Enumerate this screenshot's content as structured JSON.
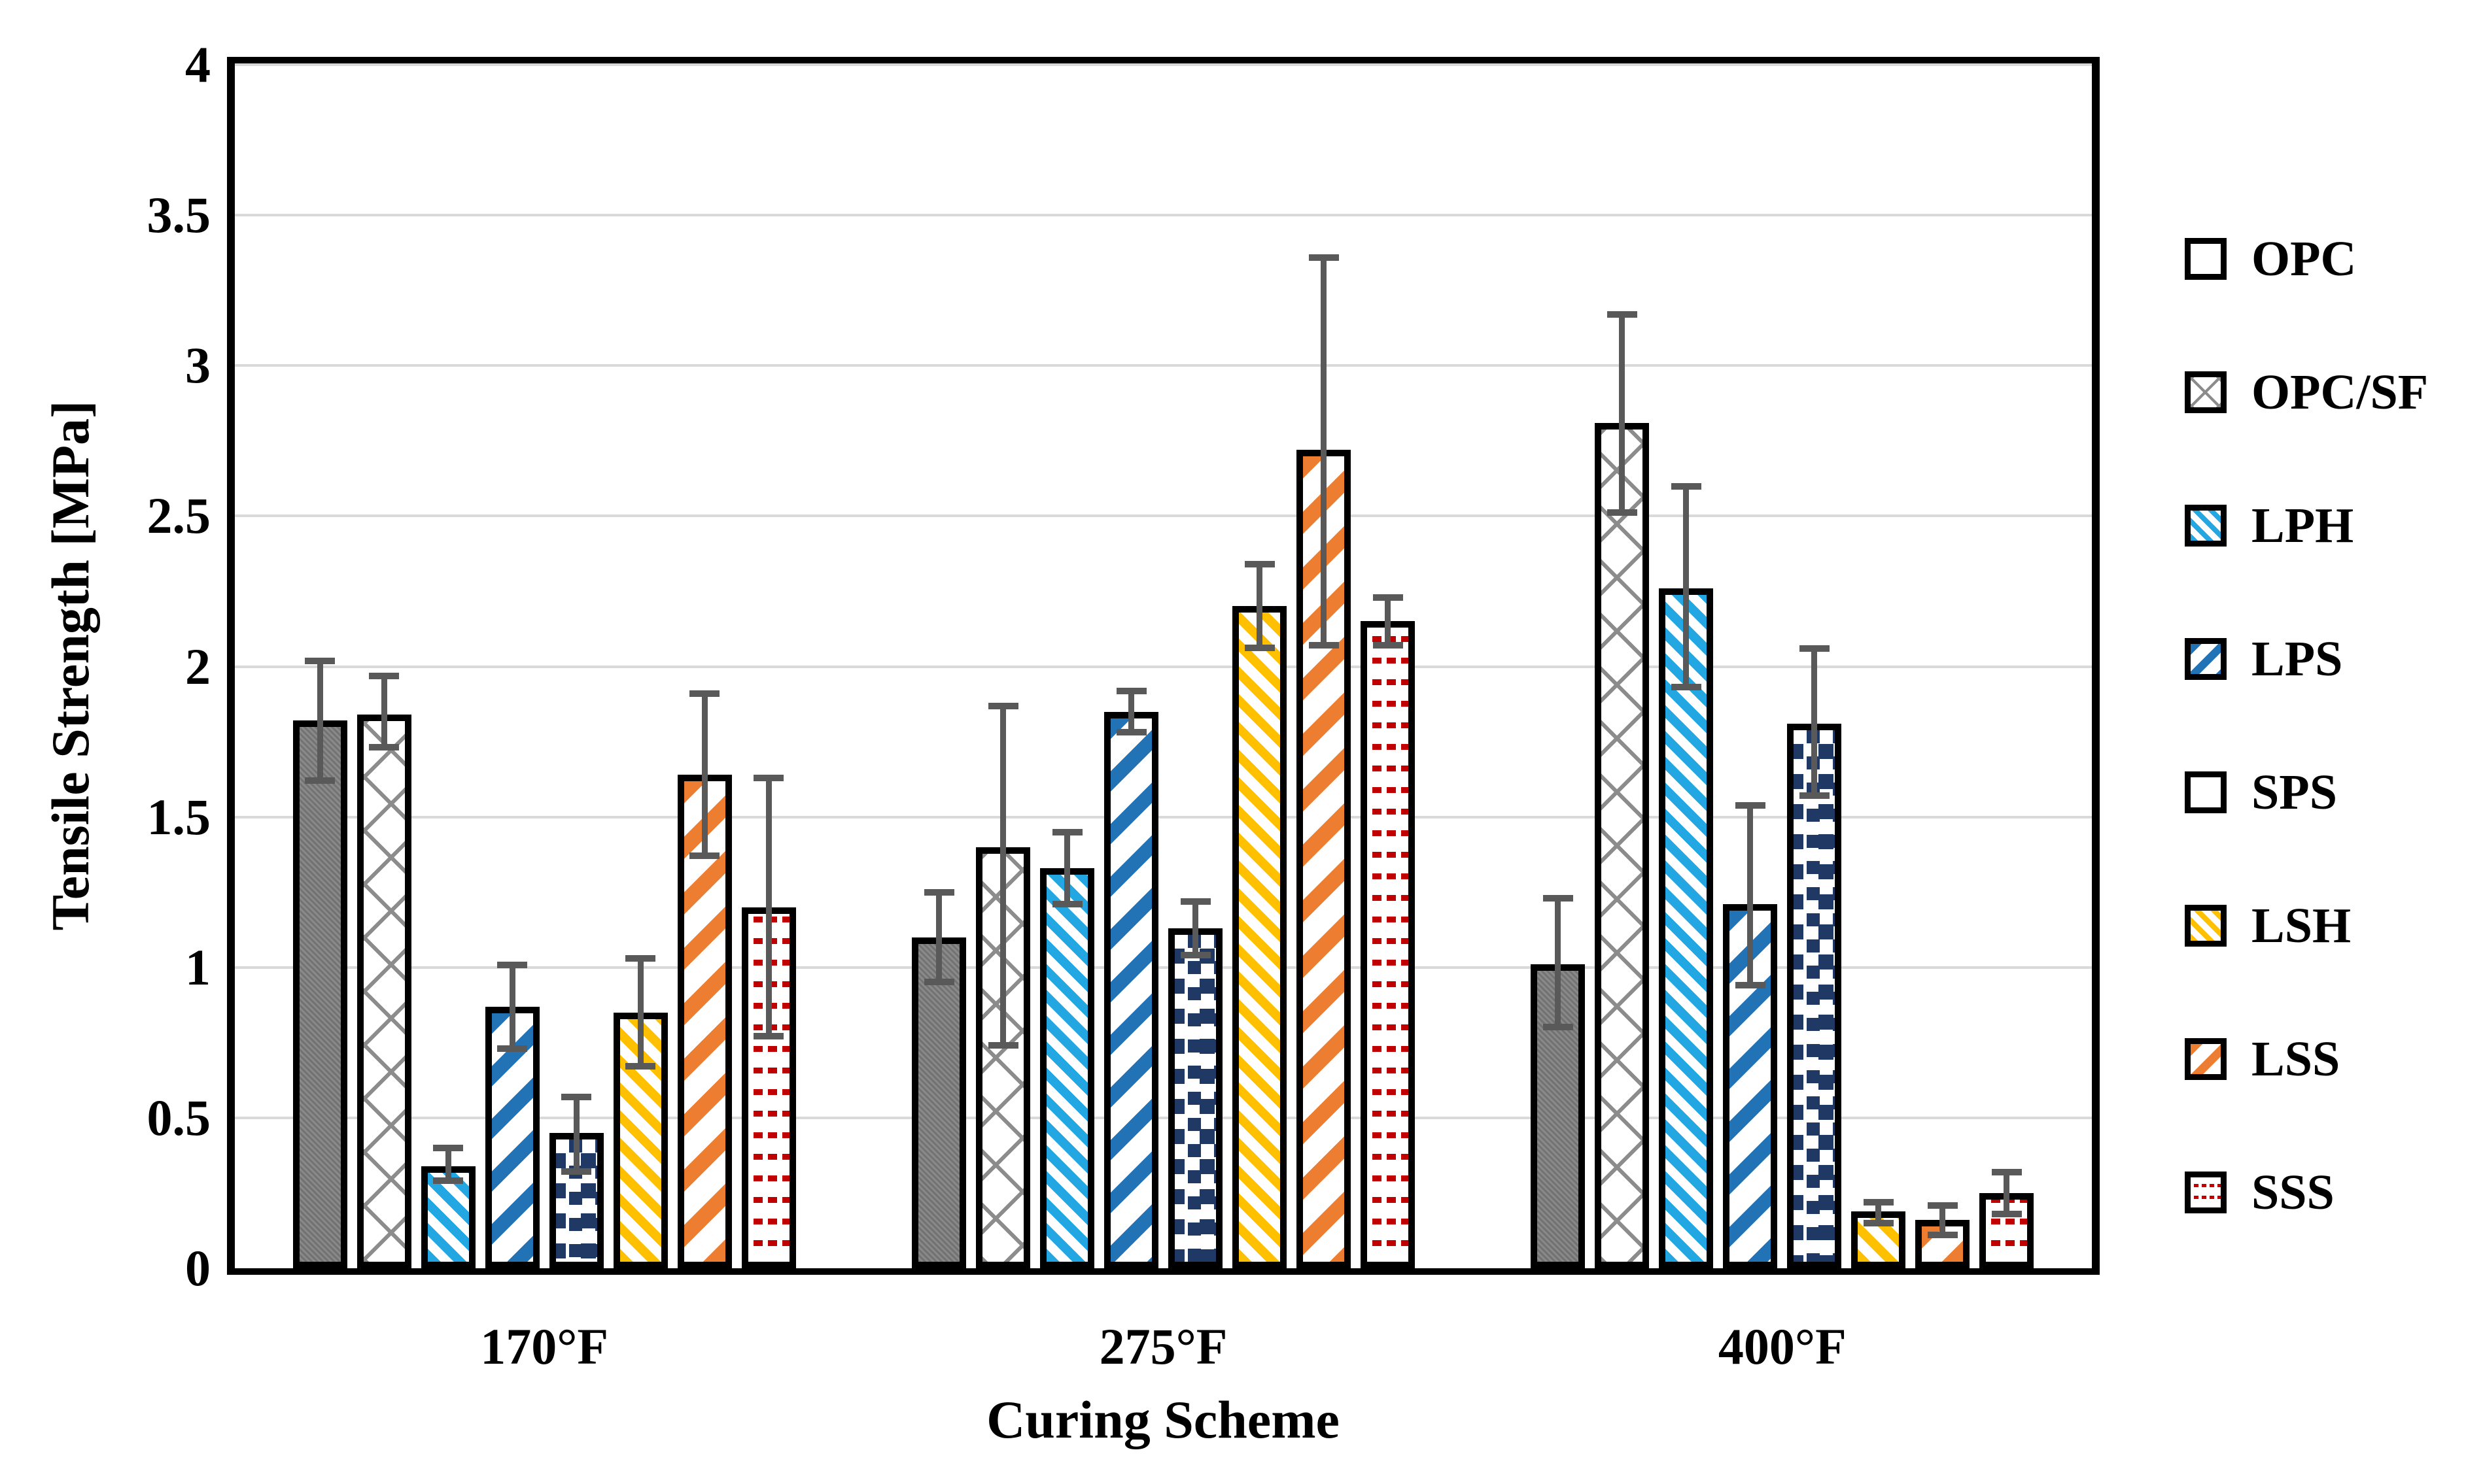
{
  "chart_data": {
    "type": "bar",
    "title": "",
    "xlabel": "Curing Scheme",
    "ylabel": "Tensile Strength [MPa]",
    "ylim": [
      0,
      4
    ],
    "ytick_step": 0.5,
    "ytick_labels": [
      "0",
      "0.5",
      "1",
      "1.5",
      "2",
      "2.5",
      "3",
      "3.5",
      "4"
    ],
    "grid": true,
    "legend_position": "right",
    "categories": [
      "170°F",
      "275°F",
      "400°F"
    ],
    "series": [
      {
        "name": "OPC",
        "pattern": "solid-gray",
        "color": "#7F7F7F",
        "values": [
          1.82,
          1.1,
          1.01
        ],
        "err_hi": [
          2.03,
          1.26,
          1.24
        ],
        "err_lo": [
          1.61,
          0.94,
          0.79
        ]
      },
      {
        "name": "OPC/SF",
        "pattern": "gray-diagonal-crosshatch",
        "color": "#8C8C8C",
        "values": [
          1.84,
          1.4,
          2.81
        ],
        "err_hi": [
          1.98,
          1.88,
          3.18
        ],
        "err_lo": [
          1.72,
          0.73,
          2.5
        ]
      },
      {
        "name": "LPH",
        "pattern": "thin-downward-diagonal",
        "color": "#22A7E3",
        "values": [
          0.34,
          1.33,
          2.26
        ],
        "err_hi": [
          0.41,
          1.46,
          2.61
        ],
        "err_lo": [
          0.28,
          1.2,
          1.92
        ]
      },
      {
        "name": "LPS",
        "pattern": "wide-upward-diagonal",
        "color": "#2272B6",
        "values": [
          0.87,
          1.85,
          1.21
        ],
        "err_hi": [
          1.02,
          1.93,
          1.55
        ],
        "err_lo": [
          0.72,
          1.77,
          0.93
        ]
      },
      {
        "name": "SPS",
        "pattern": "square-confetti",
        "color": "#1F3864",
        "values": [
          0.45,
          1.13,
          1.81
        ],
        "err_hi": [
          0.58,
          1.23,
          2.07
        ],
        "err_lo": [
          0.31,
          1.03,
          1.56
        ]
      },
      {
        "name": "LSH",
        "pattern": "thin-downward-diagonal",
        "color": "#FFC000",
        "values": [
          0.85,
          2.2,
          0.19
        ],
        "err_hi": [
          1.04,
          2.35,
          0.23
        ],
        "err_lo": [
          0.66,
          2.05,
          0.14
        ]
      },
      {
        "name": "LSS",
        "pattern": "wide-upward-diagonal",
        "color": "#ED7D31",
        "values": [
          1.64,
          2.72,
          0.16
        ],
        "err_hi": [
          1.92,
          3.37,
          0.22
        ],
        "err_lo": [
          1.36,
          2.06,
          0.1
        ]
      },
      {
        "name": "SSS",
        "pattern": "dot-confetti",
        "color": "#C00000",
        "values": [
          1.2,
          2.15,
          0.25
        ],
        "err_hi": [
          1.64,
          2.24,
          0.33
        ],
        "err_lo": [
          0.76,
          2.06,
          0.17
        ]
      }
    ],
    "error_bar_color": "#595959",
    "gridline_color": "#D9D9D9",
    "axis_color": "#000000"
  }
}
